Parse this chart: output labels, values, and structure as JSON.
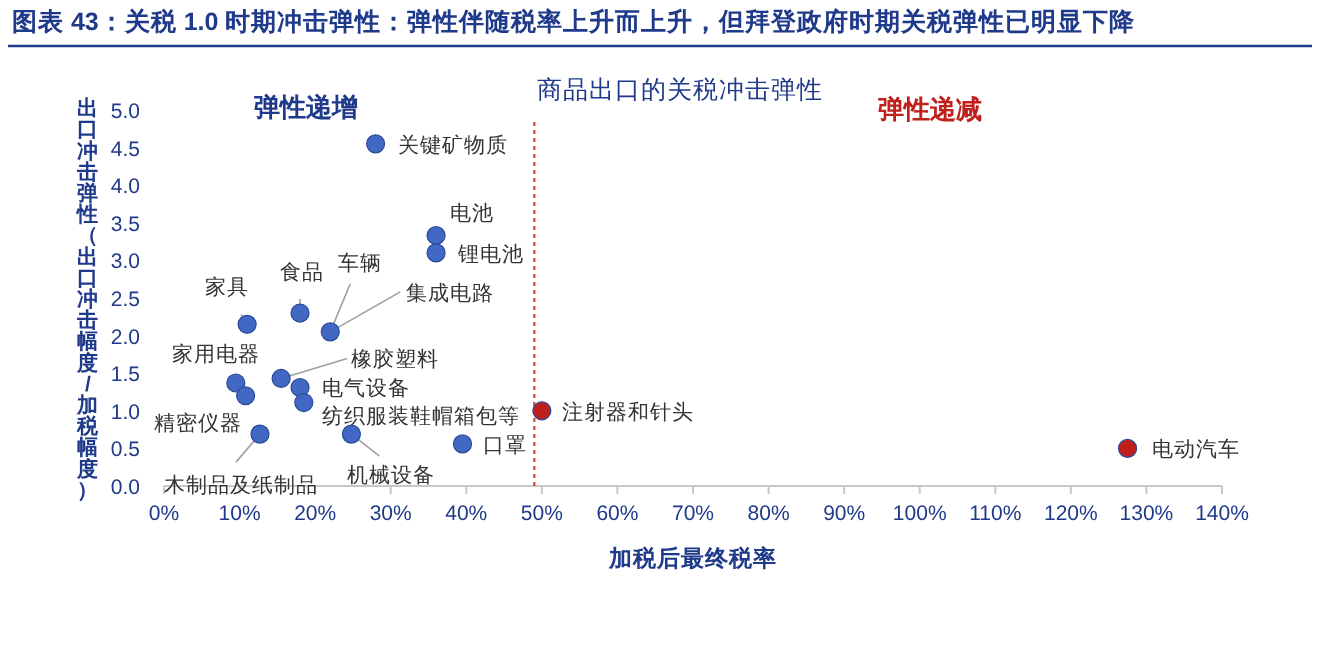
{
  "chart_data": {
    "type": "scatter",
    "title": "图表 43：关税 1.0 时期冲击弹性：弹性伴随税率上升而上升，但拜登政府时期关税弹性已明显下降",
    "xlabel": "加税后最终税率",
    "ylabel": "出口冲击弹性（出口冲击幅度/加税幅度）",
    "marker": "circle",
    "series": [
      {
        "color": "#4169c4",
        "x": [
          28,
          36,
          36,
          18,
          11,
          22,
          9.5,
          10.8,
          15.5,
          18,
          18.5,
          12.7,
          24.8,
          39.5
        ],
        "values": [
          4.55,
          3.33,
          3.1,
          2.3,
          2.15,
          2.05,
          1.37,
          1.2,
          1.43,
          1.31,
          1.11,
          0.69,
          0.69,
          0.56
        ]
      },
      {
        "color": "#c0201c",
        "x": [
          50,
          127.5
        ],
        "values": [
          1.0,
          0.5
        ]
      }
    ],
    "annotations": [
      "弹性递增",
      "商品出口的关税冲击弹性",
      "弹性递减",
      {
        "text": "关键矿物质",
        "x": 28,
        "y": 4.55
      },
      {
        "text": "电池",
        "x": 36,
        "y": 3.33
      },
      {
        "text": "锂电池",
        "x": 36,
        "y": 3.1
      },
      {
        "text": "食品",
        "x": 18,
        "y": 2.3
      },
      {
        "text": "家具",
        "x": 11,
        "y": 2.15
      },
      {
        "text": "车辆",
        "x": 22,
        "y": 2.05
      },
      {
        "text": "集成电路",
        "x": 22,
        "y": 2.05
      },
      {
        "text": "橡胶塑料",
        "x": 15.5,
        "y": 1.43
      },
      {
        "text": "家用电器",
        "x": 9.5,
        "y": 1.37
      },
      {
        "text": "电气设备",
        "x": 18,
        "y": 1.31
      },
      {
        "text": "纺织服装鞋帽箱包等",
        "x": 18.5,
        "y": 1.11
      },
      {
        "text": "精密仪器",
        "x": 10.8,
        "y": 1.2
      },
      {
        "text": "木制品及纸制品",
        "x": 12.7,
        "y": 0.69
      },
      {
        "text": "机械设备",
        "x": 24.8,
        "y": 0.69
      },
      {
        "text": "口罩",
        "x": 39.5,
        "y": 0.56
      },
      {
        "text": "注射器和针头",
        "x": 50,
        "y": 1.0
      },
      {
        "text": "电动汽车",
        "x": 127.5,
        "y": 0.5
      }
    ],
    "ref_lines": [
      {
        "axis": "x",
        "value": 49,
        "color": "#d9534f",
        "line_style": "dotted"
      }
    ],
    "xlim": [
      0,
      140
    ],
    "xticks": [
      {
        "value": 0,
        "label": "0%"
      },
      {
        "value": 10,
        "label": "10%"
      },
      {
        "value": 20,
        "label": "20%"
      },
      {
        "value": 30,
        "label": "30%"
      },
      {
        "value": 40,
        "label": "40%"
      },
      {
        "value": 50,
        "label": "50%"
      },
      {
        "value": 60,
        "label": "60%"
      },
      {
        "value": 70,
        "label": "70%"
      },
      {
        "value": 80,
        "label": "80%"
      },
      {
        "value": 90,
        "label": "90%"
      },
      {
        "value": 100,
        "label": "100%"
      },
      {
        "value": 110,
        "label": "110%"
      },
      {
        "value": 120,
        "label": "120%"
      },
      {
        "value": 130,
        "label": "130%"
      },
      {
        "value": 140,
        "label": "140%"
      }
    ],
    "ylim": [
      0,
      5
    ],
    "yticks": [
      {
        "value": 0,
        "label": "0.0"
      },
      {
        "value": 0.5,
        "label": "0.5"
      },
      {
        "value": 1,
        "label": "1.0"
      },
      {
        "value": 1.5,
        "label": "1.5"
      },
      {
        "value": 2,
        "label": "2.0"
      },
      {
        "value": 2.5,
        "label": "2.5"
      },
      {
        "value": 3,
        "label": "3.0"
      },
      {
        "value": 3.5,
        "label": "3.5"
      },
      {
        "value": 4,
        "label": "4.0"
      },
      {
        "value": 4.5,
        "label": "4.5"
      },
      {
        "value": 5,
        "label": "5.0"
      }
    ]
  }
}
